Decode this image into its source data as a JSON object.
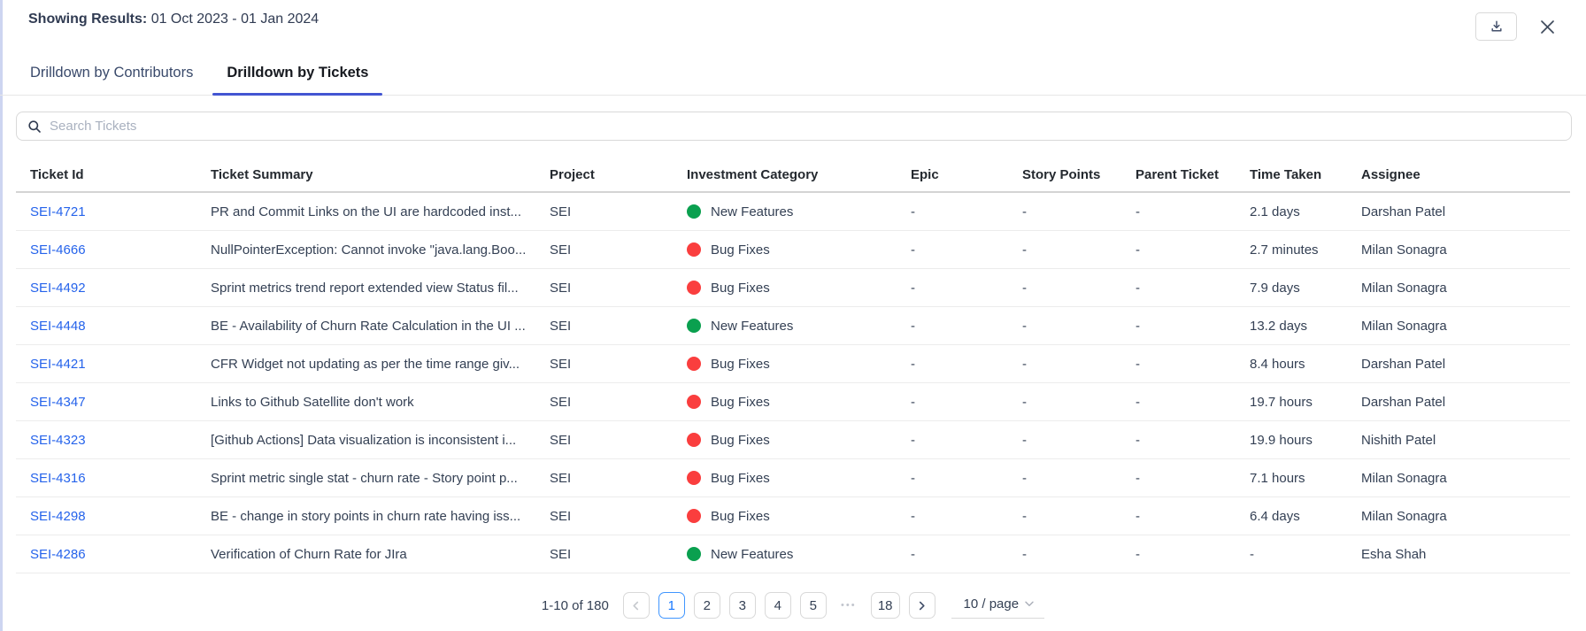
{
  "header": {
    "label": "Showing Results:",
    "date_range": "01 Oct 2023 - 01 Jan 2024"
  },
  "tabs": [
    {
      "label": "Drilldown by Contributors",
      "active": false
    },
    {
      "label": "Drilldown by Tickets",
      "active": true
    }
  ],
  "search": {
    "placeholder": "Search Tickets"
  },
  "table": {
    "columns": [
      "Ticket Id",
      "Ticket Summary",
      "Project",
      "Investment Category",
      "Epic",
      "Story Points",
      "Parent Ticket",
      "Time Taken",
      "Assignee"
    ],
    "rows": [
      {
        "id": "SEI-4721",
        "summary": "PR and Commit Links on the UI are hardcoded inst...",
        "project": "SEI",
        "category": "New Features",
        "epic": "-",
        "story_points": "-",
        "parent_ticket": "-",
        "time_taken": "2.1 days",
        "assignee": "Darshan Patel"
      },
      {
        "id": "SEI-4666",
        "summary": "NullPointerException: Cannot invoke \"java.lang.Boo...",
        "project": "SEI",
        "category": "Bug Fixes",
        "epic": "-",
        "story_points": "-",
        "parent_ticket": "-",
        "time_taken": "2.7 minutes",
        "assignee": "Milan Sonagra"
      },
      {
        "id": "SEI-4492",
        "summary": "Sprint metrics trend report extended view Status fil...",
        "project": "SEI",
        "category": "Bug Fixes",
        "epic": "-",
        "story_points": "-",
        "parent_ticket": "-",
        "time_taken": "7.9 days",
        "assignee": "Milan Sonagra"
      },
      {
        "id": "SEI-4448",
        "summary": "BE - Availability of Churn Rate Calculation in the UI ...",
        "project": "SEI",
        "category": "New Features",
        "epic": "-",
        "story_points": "-",
        "parent_ticket": "-",
        "time_taken": "13.2 days",
        "assignee": "Milan Sonagra"
      },
      {
        "id": "SEI-4421",
        "summary": "CFR Widget not updating as per the time range giv...",
        "project": "SEI",
        "category": "Bug Fixes",
        "epic": "-",
        "story_points": "-",
        "parent_ticket": "-",
        "time_taken": "8.4 hours",
        "assignee": "Darshan Patel"
      },
      {
        "id": "SEI-4347",
        "summary": "Links to Github Satellite don't work",
        "project": "SEI",
        "category": "Bug Fixes",
        "epic": "-",
        "story_points": "-",
        "parent_ticket": "-",
        "time_taken": "19.7 hours",
        "assignee": "Darshan Patel"
      },
      {
        "id": "SEI-4323",
        "summary": "[Github Actions] Data visualization is inconsistent i...",
        "project": "SEI",
        "category": "Bug Fixes",
        "epic": "-",
        "story_points": "-",
        "parent_ticket": "-",
        "time_taken": "19.9 hours",
        "assignee": "Nishith Patel"
      },
      {
        "id": "SEI-4316",
        "summary": "Sprint metric single stat - churn rate - Story point p...",
        "project": "SEI",
        "category": "Bug Fixes",
        "epic": "-",
        "story_points": "-",
        "parent_ticket": "-",
        "time_taken": "7.1 hours",
        "assignee": "Milan Sonagra"
      },
      {
        "id": "SEI-4298",
        "summary": "BE - change in story points in churn rate having iss...",
        "project": "SEI",
        "category": "Bug Fixes",
        "epic": "-",
        "story_points": "-",
        "parent_ticket": "-",
        "time_taken": "6.4 days",
        "assignee": "Milan Sonagra"
      },
      {
        "id": "SEI-4286",
        "summary": "Verification of Churn Rate for JIra",
        "project": "SEI",
        "category": "New Features",
        "epic": "-",
        "story_points": "-",
        "parent_ticket": "-",
        "time_taken": "-",
        "assignee": "Esha Shah"
      }
    ]
  },
  "category_colors": {
    "New Features": "#0aa04f",
    "Bug Fixes": "#fa3e3e"
  },
  "pagination": {
    "total_label": "1-10 of 180",
    "pages": [
      "1",
      "2",
      "3",
      "4",
      "5",
      "ellipsis",
      "18"
    ],
    "active_page": "1",
    "prev_enabled": false,
    "next_enabled": true,
    "page_size_label": "10 / page"
  },
  "colors": {
    "tab_indicator": "#4355d2",
    "ticket_link": "#2563eb",
    "active_page_border": "#4096ff"
  }
}
